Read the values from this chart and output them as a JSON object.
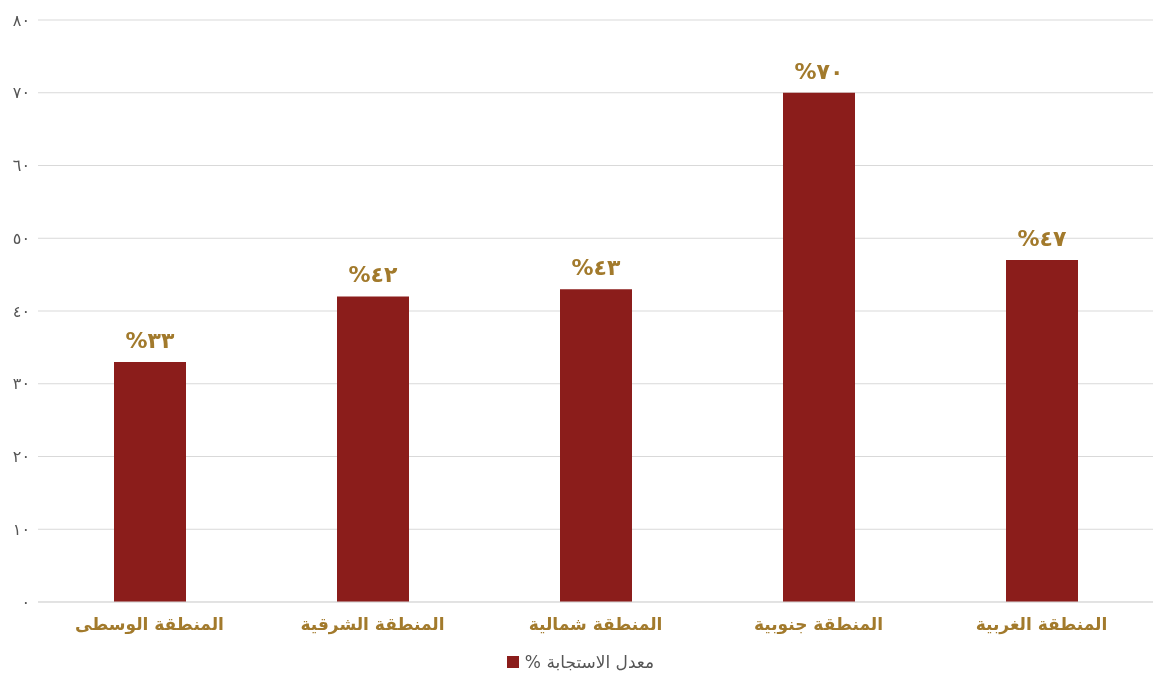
{
  "chart_data": {
    "type": "bar",
    "categories": [
      "المنطقة الوسطى",
      "المنطقة الشرقية",
      "المنطقة شمالية",
      "المنطقة جنوبية",
      "المنطقة الغربية"
    ],
    "series": [
      {
        "name": "معدل الاستجابة %",
        "color": "#8b1d1b",
        "values": [
          33,
          42,
          43,
          70,
          47
        ]
      }
    ],
    "value_labels": [
      "٣٣%",
      "٤٢%",
      "٤٣%",
      "٧٠%",
      "٤٧%"
    ],
    "ylim": [
      0,
      80
    ],
    "yticks": [
      {
        "value": 0,
        "label": "٠"
      },
      {
        "value": 10,
        "label": "١٠"
      },
      {
        "value": 20,
        "label": "٢٠"
      },
      {
        "value": 30,
        "label": "٣٠"
      },
      {
        "value": 40,
        "label": "٤٠"
      },
      {
        "value": 50,
        "label": "٥٠"
      },
      {
        "value": 60,
        "label": "٦٠"
      },
      {
        "value": 70,
        "label": "٧٠"
      },
      {
        "value": 80,
        "label": "٨٠"
      }
    ],
    "grid": "y",
    "legend": "bottom"
  }
}
